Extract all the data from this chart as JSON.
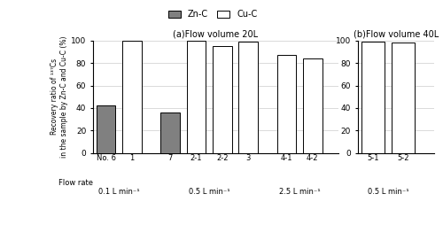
{
  "subplot_a": {
    "groups": [
      {
        "label": "0.1 L min⁻¹",
        "bars": [
          {
            "no": "No. 6",
            "zn_c": 42,
            "cu_c": null
          },
          {
            "no": "1",
            "zn_c": null,
            "cu_c": 100
          }
        ]
      },
      {
        "label": "0.5 L min⁻¹",
        "bars": [
          {
            "no": "7",
            "zn_c": 36,
            "cu_c": null
          },
          {
            "no": "2-1",
            "zn_c": null,
            "cu_c": 100
          },
          {
            "no": "2-2",
            "zn_c": null,
            "cu_c": 95
          },
          {
            "no": "3",
            "zn_c": null,
            "cu_c": 99
          }
        ]
      },
      {
        "label": "2.5 L min⁻¹",
        "bars": [
          {
            "no": "4-1",
            "zn_c": null,
            "cu_c": 87
          },
          {
            "no": "4-2",
            "zn_c": null,
            "cu_c": 84
          }
        ]
      }
    ],
    "title": "(a)Flow volume 20L"
  },
  "subplot_b": {
    "groups": [
      {
        "label": "0.5 L min⁻¹",
        "bars": [
          {
            "no": "5-1",
            "zn_c": null,
            "cu_c": 99
          },
          {
            "no": "5-2",
            "zn_c": null,
            "cu_c": 98
          }
        ]
      }
    ],
    "title": "(b)Flow volume 40L"
  },
  "ylabel": "Recovery ratio of ¹³⁷Cs\nin the sample by Zn-C and Cu-C (%)",
  "ylim": [
    0,
    100
  ],
  "yticks": [
    0,
    20,
    40,
    60,
    80,
    100
  ],
  "zn_color": "#808080",
  "cu_color": "#ffffff",
  "bar_edge_color": "#000000",
  "legend_labels": [
    "Zn-C",
    "Cu-C"
  ],
  "flowrate_label": "Flow rate"
}
